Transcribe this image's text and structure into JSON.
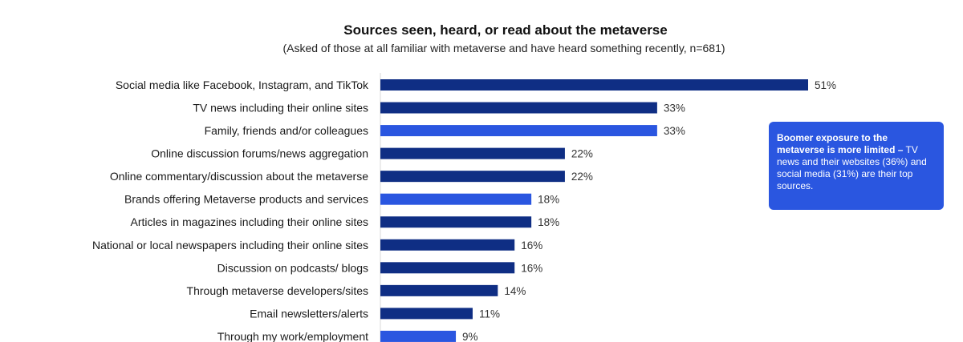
{
  "title": "Sources seen, heard, or read about the metaverse",
  "subtitle": "(Asked of those at all familiar with metaverse and have heard something recently, n=681)",
  "callout": {
    "bold": "Boomer exposure to the metaverse is more limited –",
    "text": "TV news and their websites (36%) and social media (31%) are their top sources."
  },
  "colors": {
    "dark": "#0f2e84",
    "bright": "#2a56e0",
    "callout_bg": "#2a56e0"
  },
  "chart_data": {
    "type": "bar",
    "orientation": "horizontal",
    "title": "Sources seen, heard, or read about the metaverse",
    "categories": [
      "Social media like Facebook, Instagram, and TikTok",
      "TV news including their online sites",
      "Family, friends and/or colleagues",
      "Online discussion forums/news aggregation",
      "Online commentary/discussion about the metaverse",
      "Brands offering Metaverse products and services",
      "Articles in magazines including their online sites",
      "National or local newspapers including their online sites",
      "Discussion on podcasts/ blogs",
      "Through metaverse developers/sites",
      "Email newsletters/alerts",
      "Through my work/employment"
    ],
    "values": [
      51,
      33,
      33,
      22,
      22,
      18,
      18,
      16,
      16,
      14,
      11,
      9
    ],
    "value_labels": [
      "51%",
      "33%",
      "33%",
      "22%",
      "22%",
      "18%",
      "18%",
      "16%",
      "16%",
      "14%",
      "11%",
      "9%"
    ],
    "bar_colors": [
      "dark",
      "dark",
      "bright",
      "dark",
      "dark",
      "bright",
      "dark",
      "dark",
      "dark",
      "dark",
      "dark",
      "bright"
    ],
    "xlim": [
      0,
      51
    ],
    "grid": false,
    "legend": "none"
  }
}
